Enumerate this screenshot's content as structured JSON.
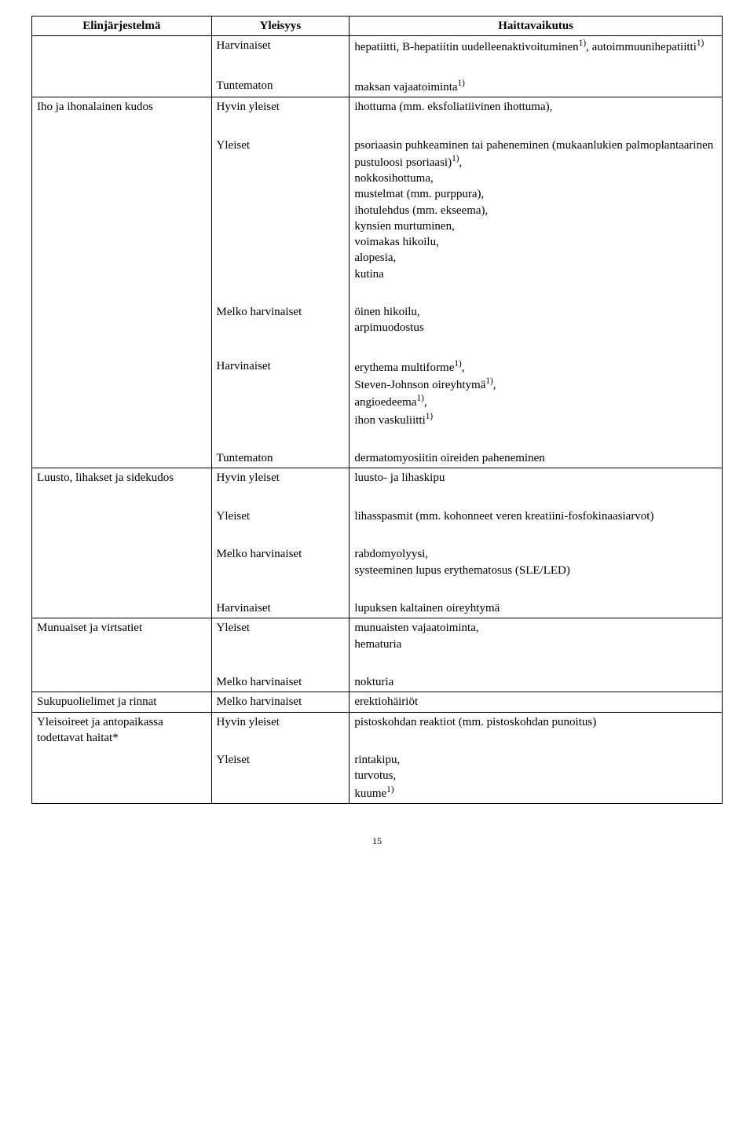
{
  "headers": {
    "col1": "Elinjärjestelmä",
    "col2": "Yleisyys",
    "col3": "Haittavaikutus"
  },
  "sections": [
    {
      "system": "",
      "rows": [
        {
          "freq": "Harvinaiset",
          "effect_html": "hepatiitti, B-hepatiitin uudelleenaktivoituminen<sup>1)</sup>, autoimmuunihepatiitti<sup>1)</sup>"
        },
        {
          "freq": "",
          "effect_html": ""
        },
        {
          "freq": "Tuntematon",
          "effect_html": "maksan vajaatoiminta<sup>1)</sup>"
        }
      ]
    },
    {
      "system": "Iho ja ihonalainen kudos",
      "rows": [
        {
          "freq": "Hyvin yleiset",
          "effect_html": "ihottuma (mm. eksfoliatiivinen ihottuma),"
        },
        {
          "freq": "",
          "effect_html": ""
        },
        {
          "freq": "Yleiset",
          "effect_html": "psoriaasin puhkeaminen tai paheneminen (mukaanlukien palmoplantaarinen pustuloosi psoriaasi)<sup>1)</sup>,<br>nokkosihottuma,<br>mustelmat (mm. purppura),<br>ihotulehdus (mm. ekseema),<br>kynsien murtuminen,<br>voimakas hikoilu,<br>alopesia,<br>kutina"
        },
        {
          "freq": "",
          "effect_html": ""
        },
        {
          "freq": "Melko harvinaiset",
          "effect_html": "öinen hikoilu,<br>arpimuodostus"
        },
        {
          "freq": "",
          "effect_html": ""
        },
        {
          "freq": "Harvinaiset",
          "effect_html": "erythema multiforme<sup>1)</sup>,<br>Steven-Johnson oireyhtymä<sup>1)</sup>,<br>angioedeema<sup>1)</sup>,<br>ihon vaskuliitti<sup>1)</sup>"
        },
        {
          "freq": "",
          "effect_html": ""
        },
        {
          "freq": "Tuntematon",
          "effect_html": "dermatomyosiitin oireiden paheneminen"
        }
      ]
    },
    {
      "system": "Luusto, lihakset ja sidekudos",
      "rows": [
        {
          "freq": "Hyvin yleiset",
          "effect_html": "luusto- ja lihaskipu"
        },
        {
          "freq": "",
          "effect_html": ""
        },
        {
          "freq": "Yleiset",
          "effect_html": "lihasspasmit (mm. kohonneet veren kreatiini-fosfokinaasiarvot)"
        },
        {
          "freq": "",
          "effect_html": ""
        },
        {
          "freq": "Melko harvinaiset",
          "effect_html": "rabdomyolyysi,<br>systeeminen lupus erythematosus (SLE/LED)"
        },
        {
          "freq": "",
          "effect_html": ""
        },
        {
          "freq": "Harvinaiset",
          "effect_html": "lupuksen kaltainen oireyhtymä"
        }
      ]
    },
    {
      "system": "Munuaiset ja virtsatiet",
      "rows": [
        {
          "freq": "Yleiset",
          "effect_html": "munuaisten vajaatoiminta,<br>hematuria"
        },
        {
          "freq": "",
          "effect_html": ""
        },
        {
          "freq": "Melko harvinaiset",
          "effect_html": "nokturia"
        }
      ]
    },
    {
      "system": "Sukupuolielimet ja rinnat",
      "rows": [
        {
          "freq": "Melko harvinaiset",
          "effect_html": "erektiohäiriöt"
        }
      ]
    },
    {
      "system": "Yleisoireet ja antopaikassa todettavat haitat*",
      "rows": [
        {
          "freq": "Hyvin yleiset",
          "effect_html": "pistoskohdan reaktiot (mm. pistoskohdan punoitus)"
        },
        {
          "freq": "",
          "effect_html": ""
        },
        {
          "freq": "Yleiset",
          "effect_html": "rintakipu,<br>turvotus,<br>kuume<sup>1)</sup>"
        }
      ]
    }
  ],
  "pageNumber": "15"
}
